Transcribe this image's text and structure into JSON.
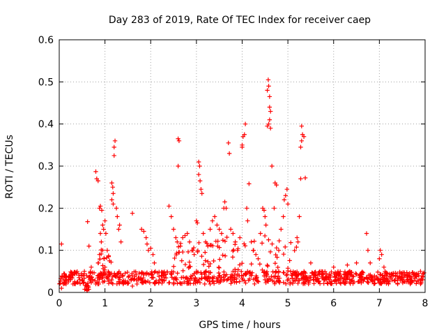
{
  "chart_data": {
    "type": "scatter",
    "title": "Day 283 of 2019, Rate Of TEC Index for receiver caep",
    "xlabel": "GPS time / hours",
    "ylabel": "ROTI / TECUs",
    "xlim": [
      0,
      8
    ],
    "ylim": [
      0,
      0.6
    ],
    "xticks": [
      0,
      1,
      2,
      3,
      4,
      5,
      6,
      7,
      8
    ],
    "xtick_labels": [
      "0",
      "1",
      "2",
      "3",
      "4",
      "5",
      "6",
      "7",
      "8"
    ],
    "yticks": [
      0,
      0.1,
      0.2,
      0.3,
      0.4,
      0.5,
      0.6
    ],
    "ytick_labels": [
      "0",
      "0.1",
      "0.2",
      "0.3",
      "0.4",
      "0.5",
      "0.6"
    ],
    "grid": true,
    "marker": "+",
    "color": "#ff0000",
    "series": [
      {
        "name": "ROTI",
        "points": [
          [
            0.05,
            0.115
          ],
          [
            0.1,
            0.03
          ],
          [
            0.2,
            0.025
          ],
          [
            0.3,
            0.02
          ],
          [
            0.45,
            0.03
          ],
          [
            0.55,
            0.05
          ],
          [
            0.6,
            0.04
          ],
          [
            0.62,
            0.168
          ],
          [
            0.65,
            0.11
          ],
          [
            0.7,
            0.06
          ],
          [
            0.8,
            0.287
          ],
          [
            0.82,
            0.27
          ],
          [
            0.85,
            0.265
          ],
          [
            0.88,
            0.2
          ],
          [
            0.9,
            0.205
          ],
          [
            0.93,
            0.195
          ],
          [
            0.95,
            0.16
          ],
          [
            0.97,
            0.15
          ],
          [
            1.0,
            0.17
          ],
          [
            1.02,
            0.14
          ],
          [
            1.05,
            0.1
          ],
          [
            1.08,
            0.085
          ],
          [
            1.1,
            0.075
          ],
          [
            0.9,
            0.14
          ],
          [
            0.92,
            0.12
          ],
          [
            0.95,
            0.1
          ],
          [
            0.98,
            0.08
          ],
          [
            1.0,
            0.06
          ],
          [
            0.85,
            0.07
          ],
          [
            0.88,
            0.09
          ],
          [
            1.15,
            0.26
          ],
          [
            1.17,
            0.25
          ],
          [
            1.18,
            0.235
          ],
          [
            1.2,
            0.345
          ],
          [
            1.22,
            0.36
          ],
          [
            1.2,
            0.325
          ],
          [
            1.25,
            0.2
          ],
          [
            1.27,
            0.18
          ],
          [
            1.3,
            0.15
          ],
          [
            1.32,
            0.16
          ],
          [
            1.35,
            0.12
          ],
          [
            1.15,
            0.22
          ],
          [
            1.18,
            0.21
          ],
          [
            1.6,
            0.188
          ],
          [
            1.8,
            0.15
          ],
          [
            1.85,
            0.145
          ],
          [
            1.9,
            0.13
          ],
          [
            1.92,
            0.115
          ],
          [
            1.95,
            0.1
          ],
          [
            2.0,
            0.105
          ],
          [
            2.05,
            0.09
          ],
          [
            2.08,
            0.07
          ],
          [
            2.1,
            0.05
          ],
          [
            2.4,
            0.205
          ],
          [
            2.45,
            0.18
          ],
          [
            2.5,
            0.15
          ],
          [
            2.55,
            0.13
          ],
          [
            2.58,
            0.12
          ],
          [
            2.6,
            0.365
          ],
          [
            2.62,
            0.36
          ],
          [
            2.6,
            0.3
          ],
          [
            2.65,
            0.11
          ],
          [
            2.7,
            0.13
          ],
          [
            2.75,
            0.135
          ],
          [
            2.8,
            0.14
          ],
          [
            2.85,
            0.12
          ],
          [
            2.9,
            0.1
          ],
          [
            2.95,
            0.09
          ],
          [
            3.0,
            0.17
          ],
          [
            3.02,
            0.165
          ],
          [
            3.05,
            0.31
          ],
          [
            3.07,
            0.3
          ],
          [
            3.05,
            0.28
          ],
          [
            3.08,
            0.265
          ],
          [
            3.1,
            0.245
          ],
          [
            3.12,
            0.235
          ],
          [
            3.15,
            0.14
          ],
          [
            3.2,
            0.12
          ],
          [
            3.25,
            0.11
          ],
          [
            3.3,
            0.15
          ],
          [
            3.35,
            0.17
          ],
          [
            3.4,
            0.18
          ],
          [
            3.45,
            0.16
          ],
          [
            3.5,
            0.15
          ],
          [
            3.55,
            0.14
          ],
          [
            3.6,
            0.2
          ],
          [
            3.62,
            0.215
          ],
          [
            3.65,
            0.2
          ],
          [
            3.7,
            0.355
          ],
          [
            3.72,
            0.33
          ],
          [
            3.75,
            0.15
          ],
          [
            3.8,
            0.14
          ],
          [
            3.85,
            0.12
          ],
          [
            3.9,
            0.1
          ],
          [
            3.95,
            0.13
          ],
          [
            4.0,
            0.35
          ],
          [
            4.02,
            0.37
          ],
          [
            4.05,
            0.375
          ],
          [
            4.07,
            0.4
          ],
          [
            4.0,
            0.345
          ],
          [
            4.1,
            0.2
          ],
          [
            4.12,
            0.17
          ],
          [
            4.15,
            0.258
          ],
          [
            4.2,
            0.12
          ],
          [
            4.25,
            0.1
          ],
          [
            4.3,
            0.09
          ],
          [
            4.35,
            0.08
          ],
          [
            4.4,
            0.14
          ],
          [
            4.45,
            0.2
          ],
          [
            4.48,
            0.195
          ],
          [
            4.5,
            0.18
          ],
          [
            4.52,
            0.16
          ],
          [
            4.55,
            0.48
          ],
          [
            4.57,
            0.505
          ],
          [
            4.58,
            0.49
          ],
          [
            4.6,
            0.465
          ],
          [
            4.6,
            0.44
          ],
          [
            4.62,
            0.43
          ],
          [
            4.6,
            0.41
          ],
          [
            4.58,
            0.4
          ],
          [
            4.55,
            0.395
          ],
          [
            4.62,
            0.39
          ],
          [
            4.65,
            0.3
          ],
          [
            4.7,
            0.2
          ],
          [
            4.72,
            0.26
          ],
          [
            4.75,
            0.255
          ],
          [
            4.8,
            0.1
          ],
          [
            4.85,
            0.15
          ],
          [
            4.9,
            0.18
          ],
          [
            4.92,
            0.22
          ],
          [
            4.95,
            0.23
          ],
          [
            4.98,
            0.245
          ],
          [
            5.0,
            0.21
          ],
          [
            5.2,
            0.13
          ],
          [
            5.22,
            0.12
          ],
          [
            5.25,
            0.18
          ],
          [
            5.28,
            0.27
          ],
          [
            5.3,
            0.395
          ],
          [
            5.32,
            0.375
          ],
          [
            5.3,
            0.36
          ],
          [
            5.35,
            0.37
          ],
          [
            5.28,
            0.345
          ],
          [
            5.38,
            0.272
          ],
          [
            5.5,
            0.07
          ],
          [
            5.7,
            0.05
          ],
          [
            6.0,
            0.06
          ],
          [
            6.3,
            0.065
          ],
          [
            6.5,
            0.07
          ],
          [
            6.72,
            0.14
          ],
          [
            6.75,
            0.1
          ],
          [
            6.8,
            0.07
          ],
          [
            7.0,
            0.08
          ],
          [
            7.02,
            0.1
          ],
          [
            7.05,
            0.09
          ],
          [
            7.1,
            0.06
          ],
          [
            7.3,
            0.04
          ],
          [
            7.5,
            0.03
          ],
          [
            7.8,
            0.04
          ],
          [
            7.9,
            0.05
          ],
          [
            7.95,
            0.03
          ],
          [
            0.15,
            0.02
          ],
          [
            0.25,
            0.03
          ],
          [
            0.35,
            0.02
          ],
          [
            0.5,
            0.03
          ],
          [
            1.4,
            0.02
          ],
          [
            1.5,
            0.025
          ],
          [
            1.7,
            0.02
          ],
          [
            2.2,
            0.03
          ],
          [
            2.3,
            0.04
          ],
          [
            3.0,
            0.05
          ],
          [
            3.5,
            0.04
          ],
          [
            3.8,
            0.05
          ],
          [
            4.2,
            0.04
          ],
          [
            4.8,
            0.05
          ],
          [
            5.1,
            0.04
          ],
          [
            5.6,
            0.04
          ],
          [
            5.9,
            0.03
          ],
          [
            6.1,
            0.03
          ],
          [
            6.4,
            0.04
          ],
          [
            6.9,
            0.03
          ],
          [
            7.2,
            0.02
          ],
          [
            7.6,
            0.025
          ],
          [
            0.05,
            0.01
          ],
          [
            0.8,
            0.02
          ],
          [
            1.6,
            0.015
          ],
          [
            2.5,
            0.02
          ],
          [
            3.3,
            0.02
          ],
          [
            4.5,
            0.03
          ],
          [
            5.4,
            0.03
          ],
          [
            6.6,
            0.03
          ],
          [
            7.4,
            0.02
          ],
          [
            7.9,
            0.02
          ]
        ]
      }
    ]
  }
}
